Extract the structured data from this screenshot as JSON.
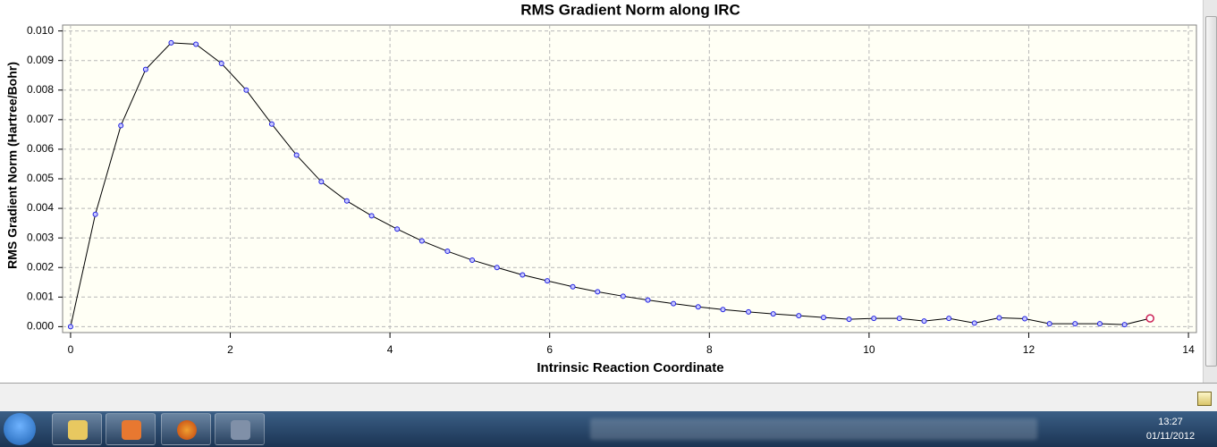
{
  "chart_data": {
    "type": "line",
    "title": "RMS Gradient Norm along IRC",
    "xlabel": "Intrinsic Reaction Coordinate",
    "ylabel": "RMS Gradient Norm (Hartree/Bohr)",
    "x": [
      0,
      0.31,
      0.63,
      0.94,
      1.26,
      1.57,
      1.89,
      2.2,
      2.52,
      2.83,
      3.14,
      3.46,
      3.77,
      4.09,
      4.4,
      4.72,
      5.03,
      5.34,
      5.66,
      5.97,
      6.29,
      6.6,
      6.92,
      7.23,
      7.55,
      7.86,
      8.17,
      8.49,
      8.8,
      9.12,
      9.43,
      9.75,
      10.06,
      10.38,
      10.69,
      11.0,
      11.32,
      11.63,
      11.95,
      12.26,
      12.58,
      12.89,
      13.2,
      13.52
    ],
    "values": [
      0,
      0.0038,
      0.0068,
      0.0087,
      0.0096,
      0.00955,
      0.0089,
      0.008,
      0.00685,
      0.0058,
      0.0049,
      0.00425,
      0.00375,
      0.0033,
      0.0029,
      0.00255,
      0.00225,
      0.002,
      0.00175,
      0.00155,
      0.00135,
      0.00118,
      0.00103,
      0.0009,
      0.00078,
      0.00067,
      0.00058,
      0.0005,
      0.00043,
      0.00037,
      0.00031,
      0.00025,
      0.00028,
      0.00028,
      0.00019,
      0.00028,
      0.00012,
      0.0003,
      0.00027,
      0.0001,
      0.0001,
      0.0001,
      7e-05,
      0.00028
    ],
    "color": "#000000",
    "marker_color": "#2020e0",
    "highlight_color": "#cc2255",
    "background": "#fffff5",
    "xlim": [
      -0.1,
      14.1
    ],
    "ylim": [
      -0.0002,
      0.0102
    ],
    "xticks": [
      0,
      2,
      4,
      6,
      8,
      10,
      12,
      14
    ],
    "yticks": [
      {
        "value": 0,
        "label": "0.000"
      },
      {
        "value": 0.001,
        "label": "0.001"
      },
      {
        "value": 0.002,
        "label": "0.002"
      },
      {
        "value": 0.003,
        "label": "0.003"
      },
      {
        "value": 0.004,
        "label": "0.004"
      },
      {
        "value": 0.005,
        "label": "0.005"
      },
      {
        "value": 0.006,
        "label": "0.006"
      },
      {
        "value": 0.007,
        "label": "0.007"
      },
      {
        "value": 0.008,
        "label": "0.008"
      },
      {
        "value": 0.009,
        "label": "0.009"
      },
      {
        "value": 0.01,
        "label": "0.010"
      }
    ],
    "grid": true
  },
  "taskbar": {
    "time": "13:27",
    "date": "01/11/2012"
  }
}
